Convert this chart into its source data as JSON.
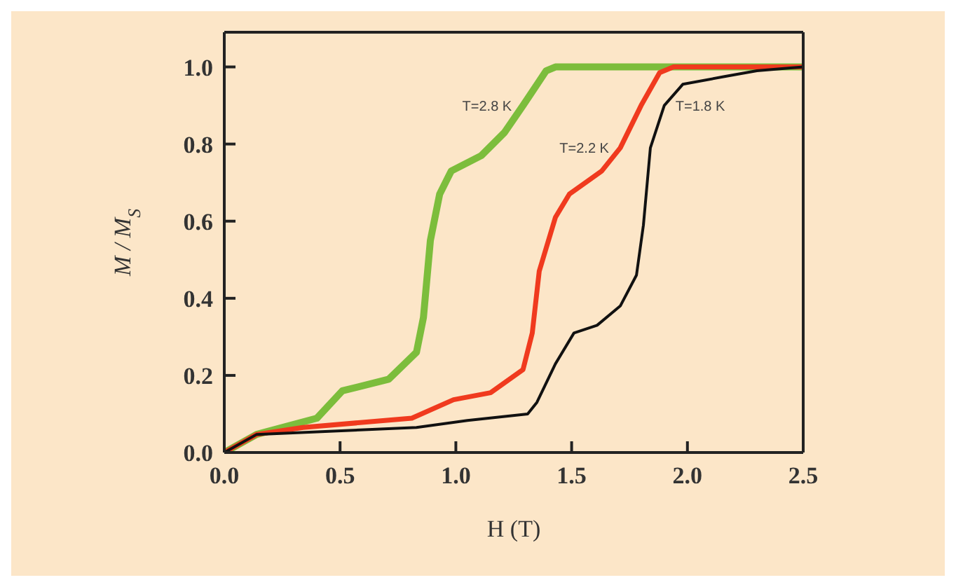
{
  "chart_data": {
    "type": "line",
    "xlabel": "H (T)",
    "ylabel": "M / M$_{S}$",
    "xlim": [
      0,
      2.5
    ],
    "ylim": [
      0,
      1.09
    ],
    "xticks": [
      {
        "value": 0,
        "label": "0.0"
      },
      0.5,
      {
        "value": 1,
        "label": "1.0"
      },
      1.5,
      {
        "value": 2,
        "label": "2.0"
      },
      2.5
    ],
    "yticks": [
      {
        "value": 0,
        "label": "0.0"
      },
      0.2,
      0.4,
      0.6,
      0.8,
      {
        "value": 1,
        "label": "1.0"
      }
    ],
    "marker": "none",
    "line_style": "solid",
    "series": [
      {
        "name": "T=2.8 K",
        "color": "#7cbd3c",
        "x": [
          0,
          0.14,
          0.4,
          0.51,
          0.71,
          0.83,
          0.86,
          0.89,
          0.93,
          0.98,
          1.11,
          1.21,
          1.29,
          1.39,
          1.43,
          2.5
        ],
        "values": [
          0,
          0.047,
          0.089,
          0.16,
          0.19,
          0.26,
          0.35,
          0.55,
          0.67,
          0.73,
          0.77,
          0.83,
          0.9,
          0.99,
          1.0,
          1.0
        ]
      },
      {
        "name": "T=2.2 K",
        "color": "#f03a1e",
        "x": [
          0,
          0.14,
          0.34,
          0.81,
          0.99,
          1.15,
          1.29,
          1.33,
          1.36,
          1.43,
          1.49,
          1.63,
          1.71,
          1.8,
          1.88,
          1.94,
          2.5
        ],
        "values": [
          0,
          0.047,
          0.065,
          0.089,
          0.137,
          0.155,
          0.215,
          0.31,
          0.47,
          0.61,
          0.67,
          0.73,
          0.79,
          0.9,
          0.985,
          1.0,
          1.0
        ]
      },
      {
        "name": "T=1.8 K",
        "color": "#111111",
        "x": [
          0,
          0.14,
          0.83,
          1.05,
          1.31,
          1.35,
          1.43,
          1.51,
          1.61,
          1.71,
          1.78,
          1.81,
          1.84,
          1.9,
          1.98,
          2.16,
          2.3,
          2.5
        ],
        "values": [
          0,
          0.047,
          0.065,
          0.083,
          0.1,
          0.13,
          0.23,
          0.31,
          0.33,
          0.38,
          0.46,
          0.59,
          0.79,
          0.9,
          0.955,
          0.975,
          0.99,
          1.0
        ]
      }
    ]
  }
}
